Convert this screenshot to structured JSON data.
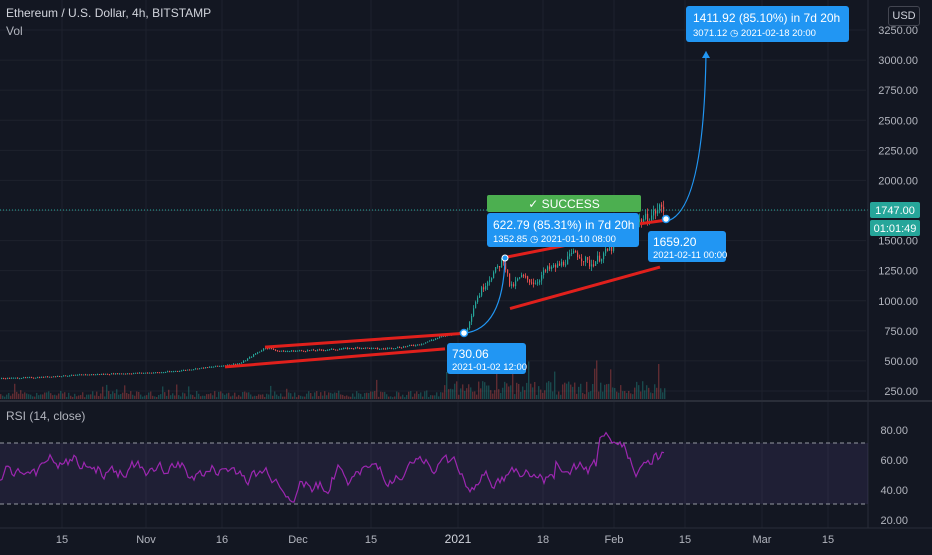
{
  "header": {
    "symbol_title": "Ethereum / U.S. Dollar, 4h, BITSTAMP",
    "volume_label": "Vol",
    "currency_button": "USD",
    "rsi_title": "RSI (14, close)"
  },
  "price_scale": {
    "current_price": "1747.00",
    "countdown": "01:01:49"
  },
  "annotations": {
    "success_badge": "✓ SUCCESS",
    "callout_1_main": "622.79 (85.31%) in 7d 20h",
    "callout_1_sub": "1352.85 ◷ 2021-01-10  08:00",
    "callout_2_main": "1411.92 (85.10%) in 7d 20h",
    "callout_2_sub": "3071.12 ◷ 2021-02-18  20:00",
    "point_a_price": "730.06",
    "point_a_time": "2021-01-02 12:00",
    "point_b_price": "1659.20",
    "point_b_time": "2021-02-11 00:00"
  },
  "colors": {
    "background": "#131722",
    "up": "#26a69a",
    "down": "#ef5350",
    "trendline": "#e0201c",
    "projection": "#2196f3",
    "rsi_line": "#9c27b0",
    "success": "#4caf50"
  },
  "chart_data": [
    {
      "type": "line",
      "title": "Ethereum / U.S. Dollar, 4h, BITSTAMP",
      "y_scale": "linear",
      "ylim": [
        200,
        3400
      ],
      "y_ticks": [
        250,
        500,
        750,
        1000,
        1250,
        1500,
        1750,
        2000,
        2250,
        2500,
        2750,
        3000,
        3250
      ],
      "y_tick_labels": [
        "250.00",
        "500.00",
        "750.00",
        "1000.00",
        "1250.00",
        "1500.00",
        "1750.00",
        "2000.00",
        "2250.00",
        "2500.00",
        "2750.00",
        "3000.00",
        "3250.00"
      ],
      "x_tick_labels": [
        "15",
        "Nov",
        "16",
        "Dec",
        "15",
        "2021",
        "18",
        "Feb",
        "15",
        "Mar",
        "15"
      ],
      "grid": true,
      "series": [
        {
          "values_approx": [
            [
              0,
              355
            ],
            [
              20,
              360
            ],
            [
              40,
              365
            ],
            [
              60,
              375
            ],
            [
              80,
              385
            ],
            [
              100,
              390
            ],
            [
              120,
              395
            ],
            [
              140,
              400
            ],
            [
              160,
              405
            ],
            [
              180,
              420
            ],
            [
              200,
              440
            ],
            [
              220,
              460
            ],
            [
              240,
              480
            ],
            [
              255,
              560
            ],
            [
              265,
              610
            ],
            [
              280,
              580
            ],
            [
              300,
              585
            ],
            [
              320,
              590
            ],
            [
              340,
              600
            ],
            [
              360,
              610
            ],
            [
              380,
              600
            ],
            [
              400,
              615
            ],
            [
              420,
              640
            ],
            [
              440,
              700
            ],
            [
              455,
              730
            ],
            [
              465,
              735
            ],
            [
              475,
              1000
            ],
            [
              485,
              1150
            ],
            [
              495,
              1250
            ],
            [
              503,
              1350
            ],
            [
              510,
              1100
            ],
            [
              520,
              1200
            ],
            [
              535,
              1150
            ],
            [
              545,
              1250
            ],
            [
              560,
              1300
            ],
            [
              575,
              1400
            ],
            [
              590,
              1300
            ],
            [
              605,
              1400
            ],
            [
              620,
              1500
            ],
            [
              635,
              1650
            ],
            [
              650,
              1700
            ],
            [
              660,
              1780
            ],
            [
              665,
              1747
            ]
          ]
        }
      ],
      "trendlines": [
        {
          "from": [
            225,
            450
          ],
          "to": [
            445,
            600
          ]
        },
        {
          "from": [
            265,
            615
          ],
          "to": [
            465,
            730
          ]
        },
        {
          "from": [
            510,
            935
          ],
          "to": [
            660,
            1280
          ]
        },
        {
          "from": [
            505,
            1360
          ],
          "to": [
            620,
            1550
          ]
        },
        {
          "from": [
            640,
            1640
          ],
          "to": [
            666,
            1670
          ]
        }
      ],
      "projections": [
        {
          "start": [
            464,
            730.06
          ],
          "end": [
            505,
            1352.85
          ]
        },
        {
          "start": [
            666,
            1659.2
          ],
          "end": [
            706,
            3071.12
          ]
        }
      ]
    },
    {
      "type": "line",
      "title": "RSI (14, close)",
      "ylim": [
        20,
        90
      ],
      "y_ticks": [
        20,
        40,
        60,
        80
      ],
      "y_tick_labels": [
        "20.00",
        "40.00",
        "60.00",
        "80.00"
      ],
      "band": [
        30,
        70
      ],
      "series": [
        {
          "name": "RSI",
          "values_approx_range": [
            28,
            86
          ]
        }
      ]
    }
  ]
}
